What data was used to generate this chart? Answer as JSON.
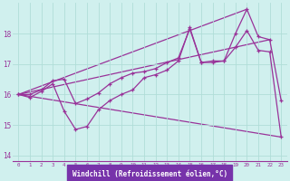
{
  "bg_color": "#d0f0ee",
  "line_color": "#993399",
  "grid_color": "#b0ddd8",
  "xlabel": "Windchill (Refroidissement éolien,°C)",
  "xlabel_bg": "#7733aa",
  "ylim": [
    13.8,
    19.0
  ],
  "xlim": [
    -0.5,
    23.5
  ],
  "yticks": [
    14,
    15,
    16,
    17,
    18
  ],
  "xticks": [
    0,
    1,
    2,
    3,
    4,
    5,
    6,
    7,
    8,
    9,
    10,
    11,
    12,
    13,
    14,
    15,
    16,
    17,
    18,
    19,
    20,
    21,
    22,
    23
  ],
  "series1_x": [
    0,
    1,
    2,
    3,
    4,
    5,
    6,
    7,
    8,
    9,
    10,
    11,
    12,
    13,
    14,
    15,
    16,
    17,
    18,
    19,
    20,
    21,
    22,
    23
  ],
  "series1_y": [
    16.0,
    15.9,
    16.1,
    16.35,
    15.45,
    14.85,
    14.95,
    15.5,
    15.8,
    16.0,
    16.15,
    16.55,
    16.65,
    16.8,
    17.1,
    18.2,
    17.05,
    17.05,
    17.1,
    17.55,
    18.1,
    17.45,
    17.4,
    14.6
  ],
  "series2_x": [
    0,
    1,
    2,
    3,
    4,
    5,
    6,
    7,
    8,
    9,
    10,
    11,
    12,
    13,
    14,
    15,
    16,
    17,
    18,
    19,
    20,
    21,
    22,
    23
  ],
  "series2_y": [
    16.0,
    16.0,
    16.15,
    16.45,
    16.5,
    15.7,
    15.85,
    16.05,
    16.35,
    16.55,
    16.7,
    16.75,
    16.85,
    17.05,
    17.2,
    18.15,
    17.05,
    17.1,
    17.1,
    18.0,
    18.8,
    17.9,
    17.8,
    15.8
  ],
  "line3_x": [
    0,
    20
  ],
  "line3_y": [
    16.0,
    18.8
  ],
  "line4_x": [
    0,
    22
  ],
  "line4_y": [
    16.0,
    17.8
  ],
  "line5_x": [
    0,
    23
  ],
  "line5_y": [
    16.0,
    14.6
  ]
}
